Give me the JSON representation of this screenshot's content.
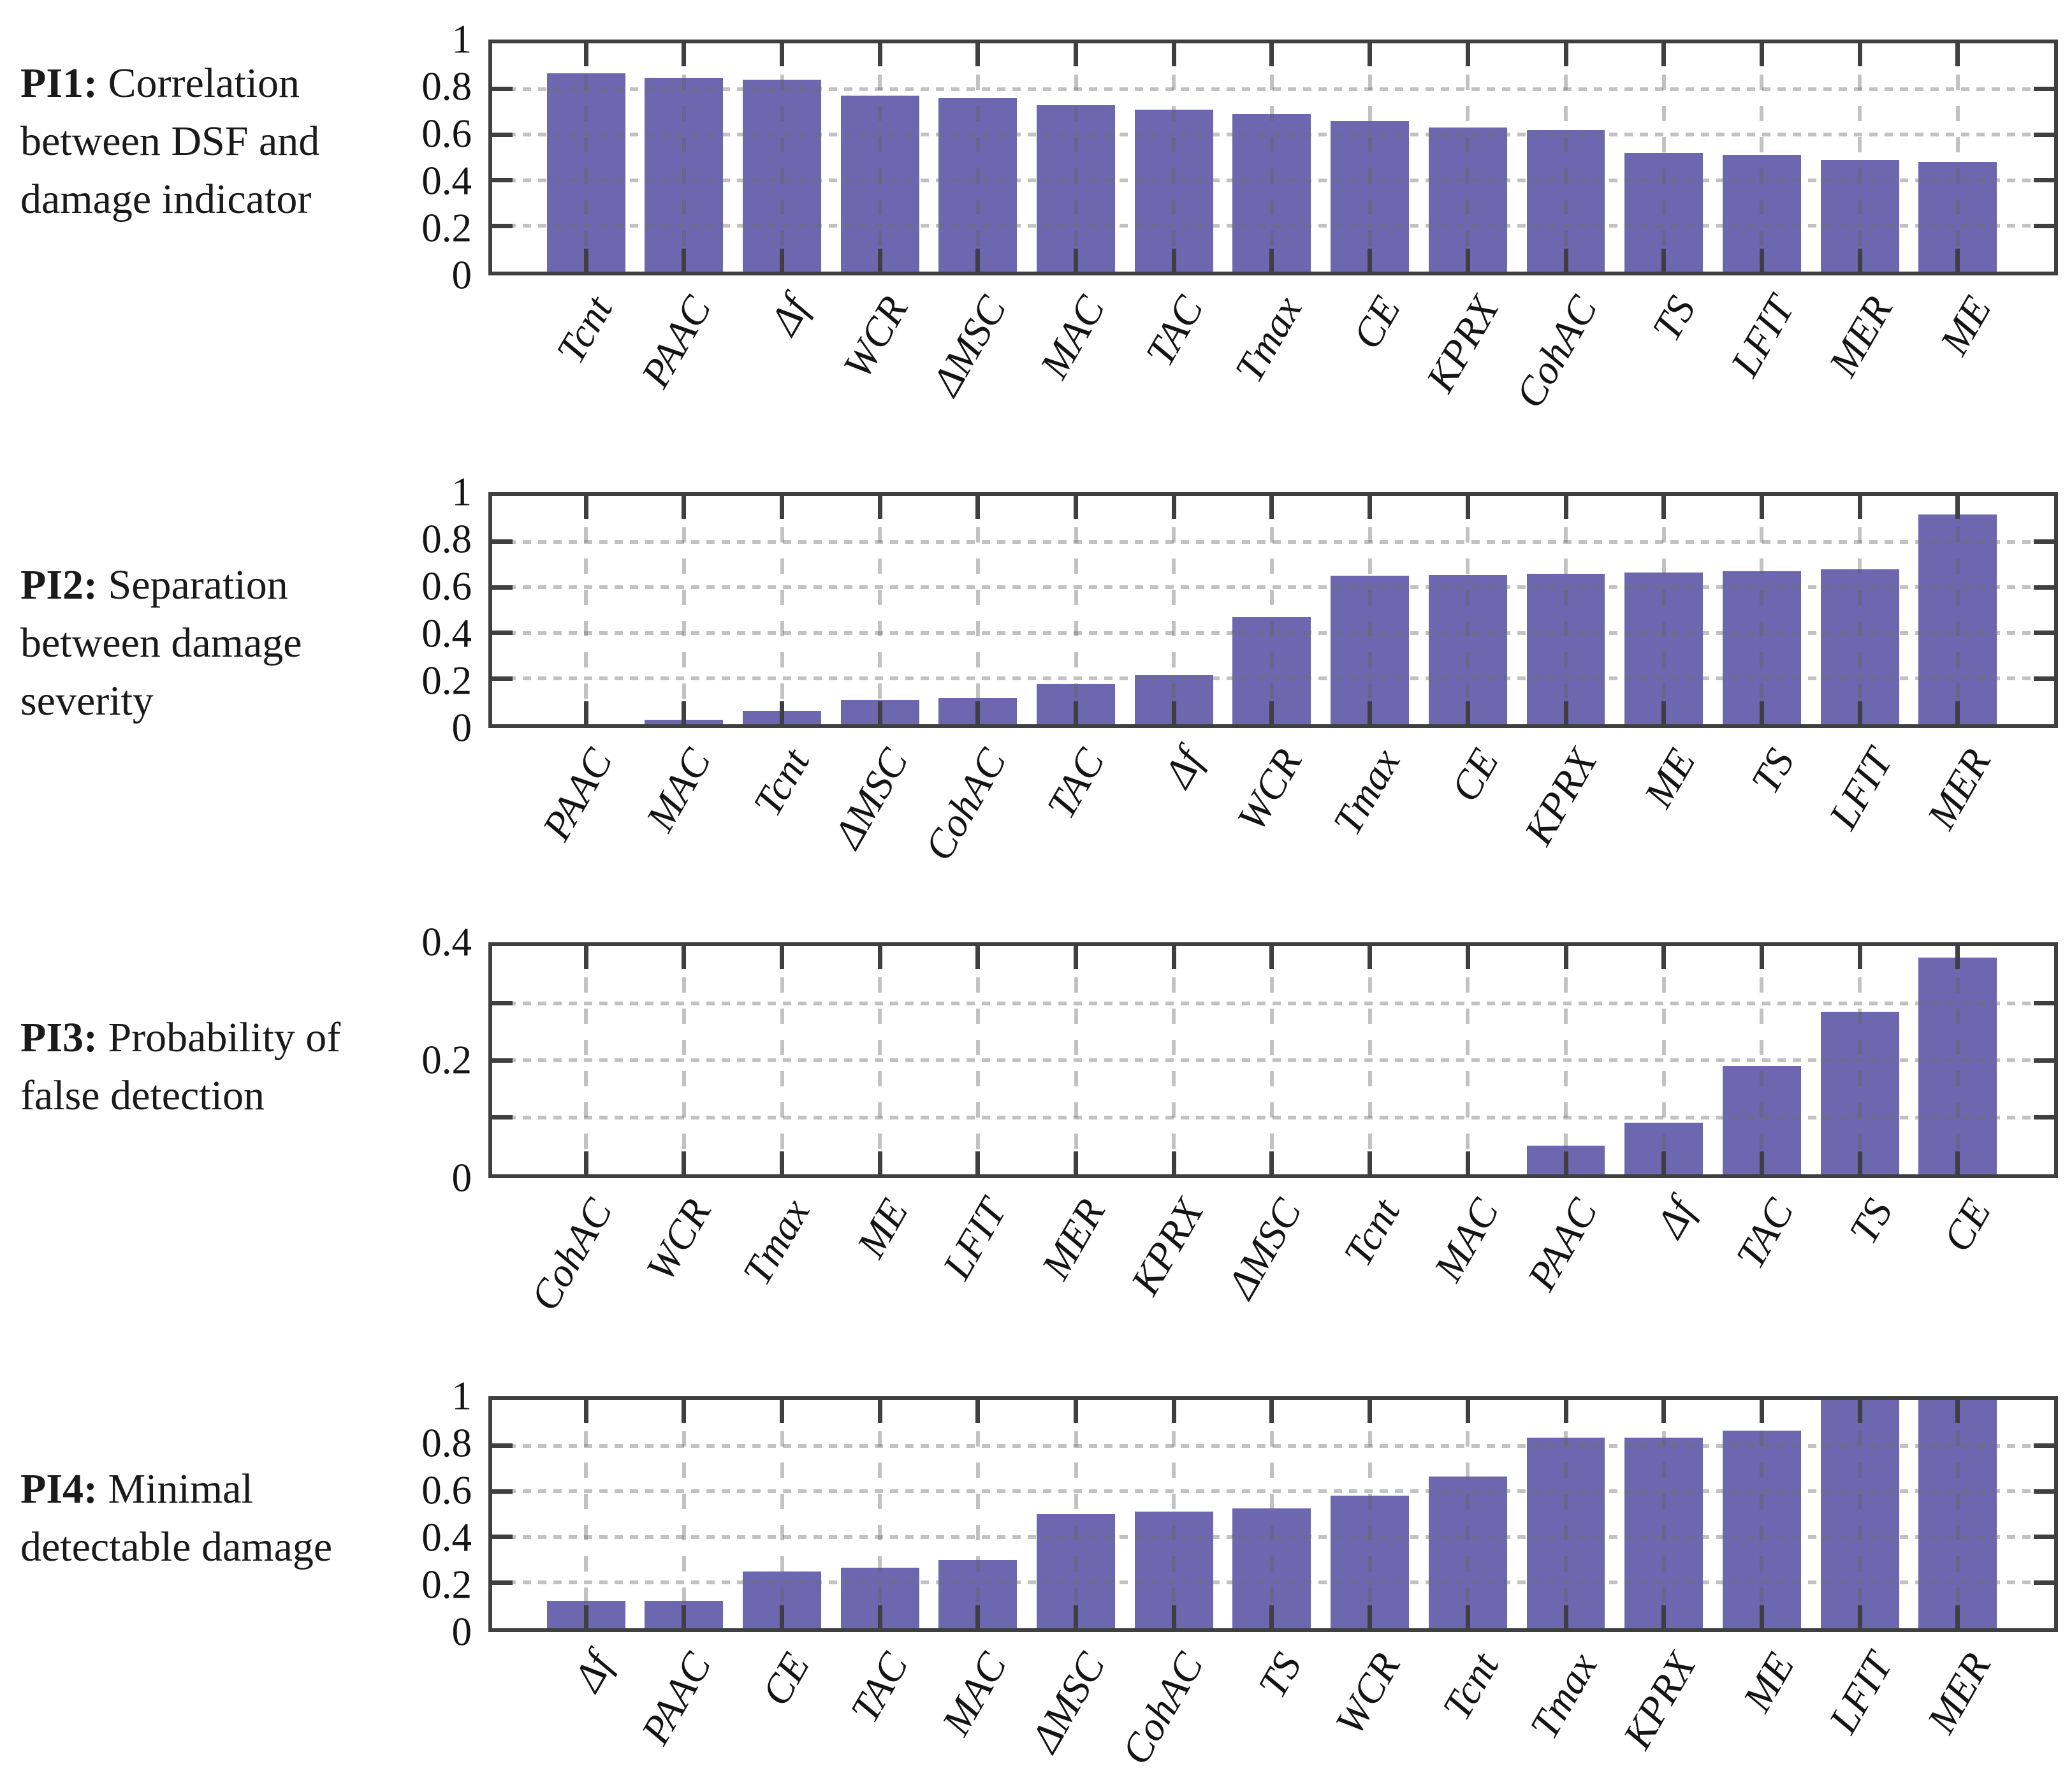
{
  "colors": {
    "bar": "#6C67AE",
    "frame": "#3F3E40",
    "gridline": "#C3C3C3",
    "text": "#1A1A1A"
  },
  "chart_data": [
    {
      "type": "bar",
      "panel": "PI1",
      "caption_bold": "PI1:",
      "caption_rest": " Correlation between DSF and damage indicator",
      "ylim": [
        0,
        1
      ],
      "yticks": [
        0,
        0.2,
        0.4,
        0.6,
        0.8,
        1
      ],
      "ytick_labels": [
        "0",
        "0.2",
        "0.4",
        "0.6",
        "0.8",
        "1"
      ],
      "gridlines": [
        0.2,
        0.4,
        0.6,
        0.8
      ],
      "grid": true,
      "legend_position": "none",
      "categories": [
        "Tcnt",
        "PAAC",
        "Δf",
        "WCR",
        "ΔMSC",
        "MAC",
        "TAC",
        "Tmax",
        "CE",
        "KPRX",
        "CohAC",
        "TS",
        "LFIT",
        "MER",
        "ME"
      ],
      "values": [
        0.87,
        0.85,
        0.84,
        0.77,
        0.76,
        0.73,
        0.71,
        0.69,
        0.66,
        0.63,
        0.62,
        0.52,
        0.51,
        0.49,
        0.48
      ]
    },
    {
      "type": "bar",
      "panel": "PI2",
      "caption_bold": "PI2:",
      "caption_rest": " Separation between damage severity",
      "ylim": [
        0,
        1
      ],
      "yticks": [
        0,
        0.2,
        0.4,
        0.6,
        0.8,
        1
      ],
      "ytick_labels": [
        "0",
        "0.2",
        "0.4",
        "0.6",
        "0.8",
        "1"
      ],
      "gridlines": [
        0.2,
        0.4,
        0.6,
        0.8
      ],
      "grid": true,
      "legend_position": "none",
      "categories": [
        "PAAC",
        "MAC",
        "Tcnt",
        "ΔMSC",
        "CohAC",
        "TAC",
        "Δf",
        "WCR",
        "Tmax",
        "CE",
        "KPRX",
        "ME",
        "TS",
        "LFIT",
        "MER"
      ],
      "values": [
        0,
        0.02,
        0.06,
        0.105,
        0.115,
        0.175,
        0.215,
        0.47,
        0.65,
        0.655,
        0.66,
        0.665,
        0.67,
        0.68,
        0.92
      ]
    },
    {
      "type": "bar",
      "panel": "PI3",
      "caption_bold": "PI3:",
      "caption_rest": " Probability of false detection",
      "ylim": [
        0,
        0.4
      ],
      "yticks": [
        0,
        0.2,
        0.4
      ],
      "ytick_labels": [
        "0",
        "0.2",
        "0.4"
      ],
      "gridlines": [
        0.1,
        0.2,
        0.3
      ],
      "grid": true,
      "legend_position": "none",
      "categories": [
        "CohAC",
        "WCR",
        "Tmax",
        "ME",
        "LFIT",
        "MER",
        "KPRX",
        "ΔMSC",
        "Tcnt",
        "MAC",
        "PAAC",
        "Δf",
        "TAC",
        "TS",
        "CE"
      ],
      "values": [
        0,
        0,
        0,
        0,
        0,
        0,
        0,
        0,
        0,
        0,
        0.05,
        0.09,
        0.19,
        0.285,
        0.38
      ]
    },
    {
      "type": "bar",
      "panel": "PI4",
      "caption_bold": "PI4:",
      "caption_rest": " Minimal detectable damage",
      "ylim": [
        0,
        1
      ],
      "yticks": [
        0,
        0.2,
        0.4,
        0.6,
        0.8,
        1
      ],
      "ytick_labels": [
        "0",
        "0.2",
        "0.4",
        "0.6",
        "0.8",
        "1"
      ],
      "gridlines": [
        0.2,
        0.4,
        0.6,
        0.8
      ],
      "grid": true,
      "legend_position": "none",
      "categories": [
        "Δf",
        "PAAC",
        "CE",
        "TAC",
        "MAC",
        "ΔMSC",
        "CohAC",
        "TS",
        "WCR",
        "Tcnt",
        "Tmax",
        "KPRX",
        "ME",
        "LFIT",
        "MER"
      ],
      "values": [
        0.12,
        0.12,
        0.25,
        0.265,
        0.3,
        0.5,
        0.51,
        0.525,
        0.58,
        0.665,
        0.835,
        0.835,
        0.865,
        1.0,
        1.0
      ]
    }
  ]
}
